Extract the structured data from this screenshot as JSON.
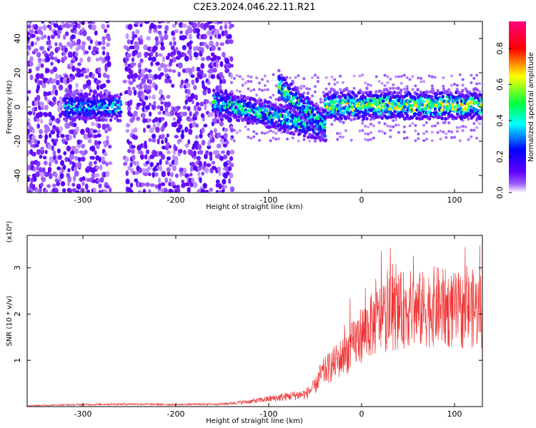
{
  "title": "C2E3.2024.046.22.11.R21",
  "chart_data": [
    {
      "type": "heatmap",
      "xlabel": "Height of straight line (km)",
      "ylabel": "Frequency (Hz)",
      "xlim": [
        -360,
        130
      ],
      "ylim": [
        -50,
        50
      ],
      "xticks": [
        -300,
        -200,
        -100,
        0,
        100
      ],
      "yticks": [
        -40,
        -20,
        0,
        20,
        40
      ],
      "colorbar": {
        "label": "Normalized spectral amplitude",
        "range": [
          0,
          0.95
        ],
        "ticks": [
          0.0,
          0.2,
          0.4,
          0.6,
          0.8
        ],
        "colormap": [
          "#ffffff",
          "#7a00ff",
          "#0000ff",
          "#00ffff",
          "#00ff00",
          "#ffff00",
          "#ff0000",
          "#ff0080"
        ]
      },
      "features": {
        "noise_background_x": [
          [
            -360,
            -270
          ],
          [
            -255,
            -140
          ]
        ],
        "trace_segments": [
          {
            "x": [
              -320,
              -260
            ],
            "y_center": 0,
            "level": 0.35
          },
          {
            "x": [
              -160,
              -40
            ],
            "y_center_start": 3,
            "y_center_end": -12,
            "level": 0.4
          },
          {
            "x": [
              -90,
              -40
            ],
            "y_center_start": 12,
            "y_center_end": -10,
            "level": 0.45
          },
          {
            "x": [
              -40,
              130
            ],
            "y_center": 1,
            "level": 0.55
          }
        ]
      }
    },
    {
      "type": "line",
      "xlabel": "Height of straight line (km)",
      "ylabel": "SNR (10 * v/v)",
      "y_multiplier": "(x10⁴)",
      "xlim": [
        -360,
        130
      ],
      "ylim": [
        0,
        3.7
      ],
      "xticks": [
        -300,
        -200,
        -100,
        0,
        100
      ],
      "yticks": [
        1,
        2,
        3
      ],
      "series": [
        {
          "color": "#ee3333",
          "x": [
            -360,
            -300,
            -250,
            -200,
            -150,
            -120,
            -100,
            -80,
            -60,
            -50,
            -45,
            -40,
            -30,
            -20,
            -10,
            0,
            10,
            20,
            30,
            40,
            50,
            60,
            70,
            80,
            90,
            100,
            110,
            120,
            130
          ],
          "y": [
            0.02,
            0.04,
            0.05,
            0.04,
            0.05,
            0.1,
            0.15,
            0.2,
            0.25,
            0.4,
            0.6,
            0.7,
            0.85,
            1.0,
            1.2,
            1.45,
            1.6,
            1.75,
            1.85,
            1.9,
            1.95,
            1.9,
            1.95,
            2.0,
            1.95,
            1.9,
            1.9,
            1.95,
            1.9
          ]
        }
      ]
    }
  ]
}
